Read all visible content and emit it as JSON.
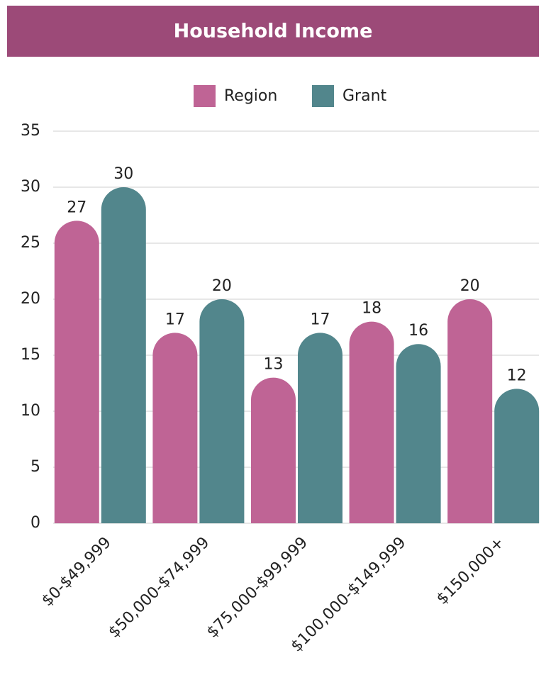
{
  "chart_data": {
    "type": "bar",
    "title": "Household Income",
    "categories": [
      "$0-$49,999",
      "$50,000-$74,999",
      "$75,000-$99,999",
      "$100,000-$149,999",
      "$150,000+"
    ],
    "series": [
      {
        "name": "Region",
        "color": "#bf6495",
        "values": [
          27,
          17,
          13,
          18,
          20
        ]
      },
      {
        "name": "Grant",
        "color": "#52868c",
        "values": [
          30,
          20,
          17,
          16,
          12
        ]
      }
    ],
    "ylim": [
      0,
      35
    ],
    "yticks": [
      0,
      5,
      10,
      15,
      20,
      25,
      30,
      35
    ],
    "grid": true,
    "legend": "top"
  }
}
